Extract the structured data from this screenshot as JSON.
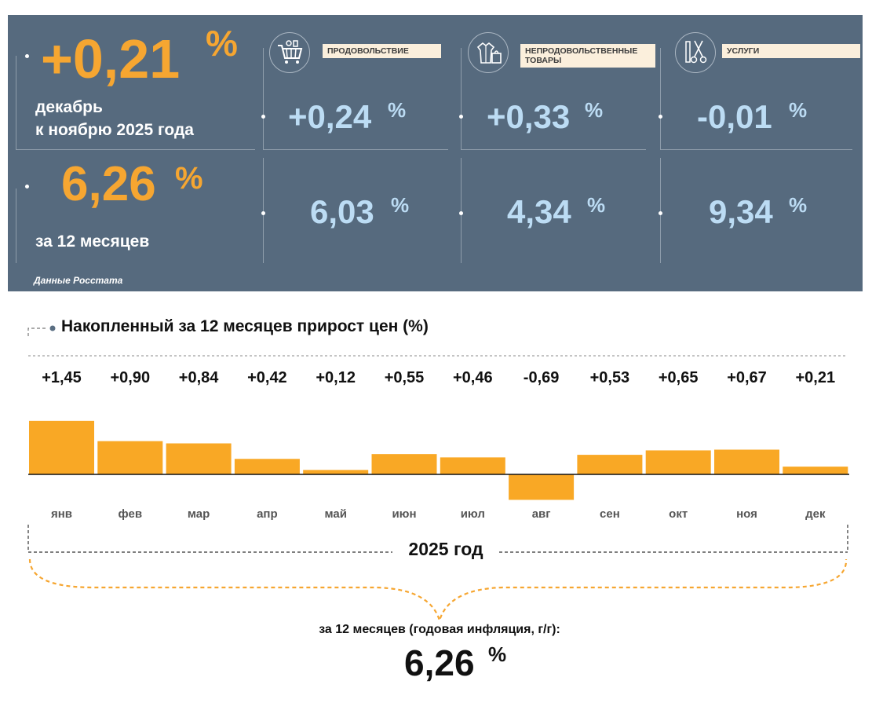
{
  "header": {
    "total_month": {
      "value": "+0,21",
      "unit": "%",
      "caption_line1": "декабрь",
      "caption_line2": "к ноябрю 2025 года"
    },
    "total_year": {
      "value": "6,26",
      "unit": "%",
      "caption": "за 12 месяцев"
    },
    "source": "Данные Росстата",
    "categories": [
      {
        "label_line1": "ПРОДОВОЛЬСТВИЕ",
        "label_line2": "",
        "icon": "shopping-cart-icon",
        "month": "+0,24",
        "year": "6,03",
        "unit": "%"
      },
      {
        "label_line1": "НЕПРОДОВОЛЬСТВЕННЫЕ",
        "label_line2": "ТОВАРЫ",
        "icon": "clothes-bag-icon",
        "month": "+0,33",
        "year": "4,34",
        "unit": "%"
      },
      {
        "label_line1": "УСЛУГИ",
        "label_line2": "",
        "icon": "scissors-comb-icon",
        "month": "-0,01",
        "year": "9,34",
        "unit": "%"
      }
    ]
  },
  "chart_data": {
    "type": "bar",
    "title": "Накопленный за 12 месяцев прирост цен (%)",
    "categories": [
      "янв",
      "фев",
      "мар",
      "апр",
      "май",
      "июн",
      "июл",
      "авг",
      "сен",
      "окт",
      "ноя",
      "дек"
    ],
    "values": [
      1.45,
      0.9,
      0.84,
      0.42,
      0.12,
      0.55,
      0.46,
      -0.69,
      0.53,
      0.65,
      0.67,
      0.21
    ],
    "value_labels": [
      "+1,45",
      "+0,90",
      "+0,84",
      "+0,42",
      "+0,12",
      "+0,55",
      "+0,46",
      "-0,69",
      "+0,53",
      "+0,65",
      "+0,67",
      "+0,21"
    ],
    "xlabel": "2025 год",
    "ylabel": "",
    "color": "#f9a825"
  },
  "footer": {
    "caption": "за 12 месяцев (годовая инфляция, г/г):",
    "value": "6,26",
    "unit": "%"
  }
}
